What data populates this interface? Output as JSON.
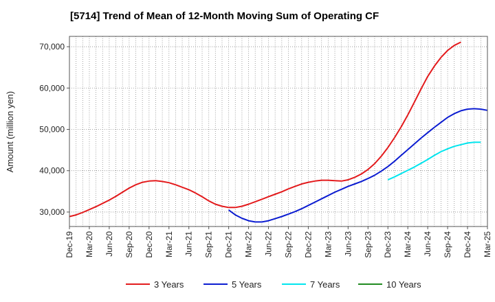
{
  "chart_data": {
    "type": "line",
    "title": "[5714]  Trend of Mean of 12-Month Moving Sum of Operating CF",
    "xlabel": "",
    "ylabel": "Amount (million yen)",
    "ylim": [
      26500,
      72500
    ],
    "yticks": [
      30000,
      40000,
      50000,
      60000,
      70000
    ],
    "ytick_labels": [
      "30,000",
      "40,000",
      "50,000",
      "60,000",
      "70,000"
    ],
    "xticks": [
      "Dec-19",
      "Mar-20",
      "Jun-20",
      "Sep-20",
      "Dec-20",
      "Mar-21",
      "Jun-21",
      "Sep-21",
      "Dec-21",
      "Mar-22",
      "Jun-22",
      "Sep-22",
      "Dec-22",
      "Mar-23",
      "Jun-23",
      "Sep-23",
      "Dec-23",
      "Mar-24",
      "Jun-24",
      "Sep-24",
      "Dec-24",
      "Mar-25"
    ],
    "grid": true,
    "legend_position": "bottom",
    "series": [
      {
        "name": "3 Years",
        "color": "#e31a1c",
        "points": [
          [
            0,
            28900
          ],
          [
            1,
            29300
          ],
          [
            2,
            29900
          ],
          [
            3,
            30600
          ],
          [
            4,
            31300
          ],
          [
            5,
            32100
          ],
          [
            6,
            32900
          ],
          [
            7,
            33800
          ],
          [
            8,
            34800
          ],
          [
            9,
            35800
          ],
          [
            10,
            36600
          ],
          [
            11,
            37200
          ],
          [
            12,
            37500
          ],
          [
            13,
            37600
          ],
          [
            14,
            37400
          ],
          [
            15,
            37100
          ],
          [
            16,
            36600
          ],
          [
            17,
            36000
          ],
          [
            18,
            35400
          ],
          [
            19,
            34600
          ],
          [
            20,
            33700
          ],
          [
            21,
            32700
          ],
          [
            22,
            31900
          ],
          [
            23,
            31400
          ],
          [
            24,
            31100
          ],
          [
            25,
            31100
          ],
          [
            26,
            31400
          ],
          [
            27,
            31900
          ],
          [
            28,
            32500
          ],
          [
            29,
            33100
          ],
          [
            30,
            33700
          ],
          [
            31,
            34300
          ],
          [
            32,
            34900
          ],
          [
            33,
            35600
          ],
          [
            34,
            36200
          ],
          [
            35,
            36800
          ],
          [
            36,
            37200
          ],
          [
            37,
            37500
          ],
          [
            38,
            37700
          ],
          [
            39,
            37700
          ],
          [
            40,
            37600
          ],
          [
            41,
            37500
          ],
          [
            42,
            37800
          ],
          [
            43,
            38400
          ],
          [
            44,
            39200
          ],
          [
            45,
            40300
          ],
          [
            46,
            41700
          ],
          [
            47,
            43500
          ],
          [
            48,
            45600
          ],
          [
            49,
            48000
          ],
          [
            50,
            50600
          ],
          [
            51,
            53500
          ],
          [
            52,
            56600
          ],
          [
            53,
            59800
          ],
          [
            54,
            62800
          ],
          [
            55,
            65300
          ],
          [
            56,
            67400
          ],
          [
            57,
            69100
          ],
          [
            58,
            70300
          ],
          [
            59,
            71100
          ]
        ]
      },
      {
        "name": "5 Years",
        "color": "#0b1cd1",
        "points": [
          [
            24,
            30500
          ],
          [
            25,
            29300
          ],
          [
            26,
            28500
          ],
          [
            27,
            27900
          ],
          [
            28,
            27600
          ],
          [
            29,
            27600
          ],
          [
            30,
            27900
          ],
          [
            31,
            28400
          ],
          [
            32,
            28900
          ],
          [
            33,
            29500
          ],
          [
            34,
            30100
          ],
          [
            35,
            30800
          ],
          [
            36,
            31600
          ],
          [
            37,
            32400
          ],
          [
            38,
            33200
          ],
          [
            39,
            34000
          ],
          [
            40,
            34800
          ],
          [
            41,
            35500
          ],
          [
            42,
            36200
          ],
          [
            43,
            36800
          ],
          [
            44,
            37400
          ],
          [
            45,
            38100
          ],
          [
            46,
            38900
          ],
          [
            47,
            39900
          ],
          [
            48,
            41000
          ],
          [
            49,
            42300
          ],
          [
            50,
            43700
          ],
          [
            51,
            45100
          ],
          [
            52,
            46500
          ],
          [
            53,
            47900
          ],
          [
            54,
            49200
          ],
          [
            55,
            50500
          ],
          [
            56,
            51700
          ],
          [
            57,
            52900
          ],
          [
            58,
            53800
          ],
          [
            59,
            54500
          ],
          [
            60,
            54900
          ],
          [
            61,
            55000
          ],
          [
            62,
            54900
          ],
          [
            63,
            54600
          ]
        ]
      },
      {
        "name": "7 Years",
        "color": "#00e5ee",
        "points": [
          [
            48,
            37800
          ],
          [
            49,
            38500
          ],
          [
            50,
            39300
          ],
          [
            51,
            40100
          ],
          [
            52,
            40900
          ],
          [
            53,
            41800
          ],
          [
            54,
            42700
          ],
          [
            55,
            43700
          ],
          [
            56,
            44600
          ],
          [
            57,
            45300
          ],
          [
            58,
            45900
          ],
          [
            59,
            46300
          ],
          [
            60,
            46700
          ],
          [
            61,
            46900
          ],
          [
            62,
            46900
          ]
        ]
      },
      {
        "name": "10 Years",
        "color": "#1f8a1f",
        "points": []
      }
    ]
  }
}
